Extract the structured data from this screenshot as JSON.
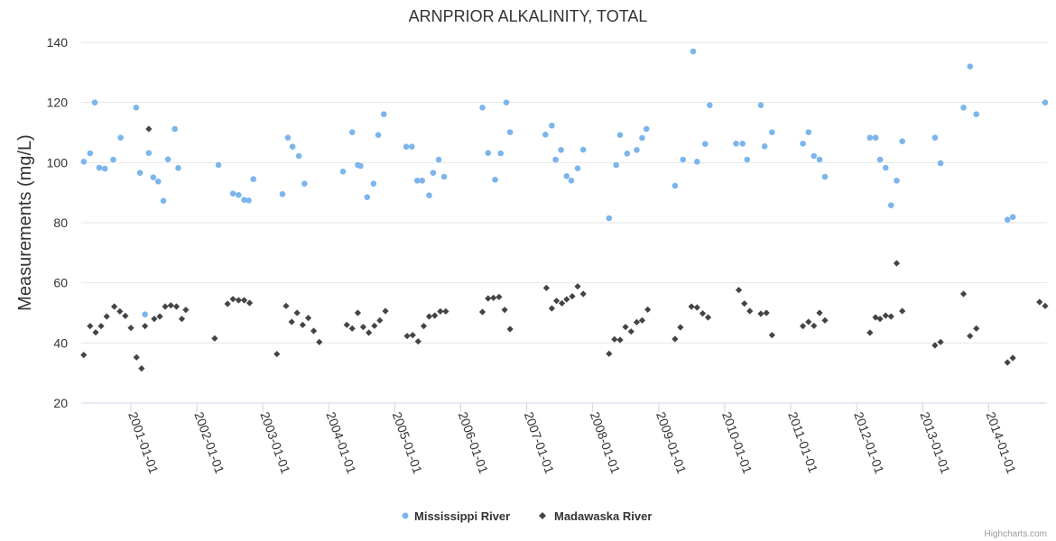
{
  "chart_data": {
    "type": "scatter",
    "title": "ARNPRIOR ALKALINITY, TOTAL",
    "ylabel": "Measurements (mg/L)",
    "xlabel": "",
    "ylim": [
      20,
      140
    ],
    "yticks": [
      20,
      40,
      60,
      80,
      100,
      120,
      140
    ],
    "xlim": [
      "2000-04-01",
      "2014-11-20"
    ],
    "xticks": [
      "2001-01-01",
      "2002-01-01",
      "2003-01-01",
      "2004-01-01",
      "2005-01-01",
      "2006-01-01",
      "2007-01-01",
      "2008-01-01",
      "2009-01-01",
      "2010-01-01",
      "2011-01-01",
      "2012-01-01",
      "2013-01-01",
      "2014-01-01"
    ],
    "grid": "horizontal",
    "legend_position": "bottom-center",
    "series": [
      {
        "name": "Mississippi River",
        "color": "#7cb5ec",
        "marker": "circle",
        "points": [
          [
            "2000-04-15",
            100.3
          ],
          [
            "2000-05-20",
            103.1
          ],
          [
            "2000-06-15",
            120
          ],
          [
            "2000-07-10",
            98.3
          ],
          [
            "2000-08-10",
            98
          ],
          [
            "2000-09-25",
            101
          ],
          [
            "2000-11-05",
            108.3
          ],
          [
            "2001-01-30",
            118.3
          ],
          [
            "2001-02-20",
            96.6
          ],
          [
            "2001-03-20",
            49.5
          ],
          [
            "2001-04-10",
            103.2
          ],
          [
            "2001-05-05",
            95.1
          ],
          [
            "2001-06-01",
            93.7
          ],
          [
            "2001-06-30",
            87.3
          ],
          [
            "2001-07-25",
            101.1
          ],
          [
            "2001-09-01",
            111.2
          ],
          [
            "2001-09-20",
            98.2
          ],
          [
            "2002-05-01",
            99.2
          ],
          [
            "2002-07-20",
            89.7
          ],
          [
            "2002-08-20",
            89.2
          ],
          [
            "2002-09-20",
            87.6
          ],
          [
            "2002-10-15",
            87.4
          ],
          [
            "2002-11-10",
            94.5
          ],
          [
            "2003-04-20",
            89.5
          ],
          [
            "2003-05-20",
            108.3
          ],
          [
            "2003-06-15",
            105.3
          ],
          [
            "2003-07-20",
            102.2
          ],
          [
            "2003-08-20",
            93
          ],
          [
            "2004-03-20",
            97
          ],
          [
            "2004-05-10",
            110.1
          ],
          [
            "2004-06-10",
            99.2
          ],
          [
            "2004-06-25",
            98.9
          ],
          [
            "2004-08-01",
            88.5
          ],
          [
            "2004-09-05",
            93
          ],
          [
            "2004-10-01",
            109.2
          ],
          [
            "2004-11-01",
            116.1
          ],
          [
            "2005-03-05",
            105.3
          ],
          [
            "2005-04-05",
            105.3
          ],
          [
            "2005-05-05",
            94
          ],
          [
            "2005-06-01",
            94
          ],
          [
            "2005-07-10",
            89.1
          ],
          [
            "2005-08-01",
            96.6
          ],
          [
            "2005-09-01",
            101
          ],
          [
            "2005-10-01",
            95.3
          ],
          [
            "2006-05-01",
            118.3
          ],
          [
            "2006-06-01",
            103.2
          ],
          [
            "2006-07-10",
            94.3
          ],
          [
            "2006-08-10",
            103.1
          ],
          [
            "2006-09-10",
            120
          ],
          [
            "2006-10-01",
            110.1
          ],
          [
            "2007-04-15",
            109.3
          ],
          [
            "2007-05-20",
            112.3
          ],
          [
            "2007-06-10",
            101
          ],
          [
            "2007-07-10",
            104.2
          ],
          [
            "2007-08-10",
            95.5
          ],
          [
            "2007-09-05",
            94
          ],
          [
            "2007-10-10",
            98.1
          ],
          [
            "2007-11-10",
            104.3
          ],
          [
            "2008-04-01",
            81.5
          ],
          [
            "2008-05-10",
            99.2
          ],
          [
            "2008-06-01",
            109.2
          ],
          [
            "2008-07-10",
            103
          ],
          [
            "2008-09-01",
            104.2
          ],
          [
            "2008-10-01",
            108.2
          ],
          [
            "2008-10-25",
            111.2
          ],
          [
            "2009-04-01",
            92.3
          ],
          [
            "2009-05-15",
            101
          ],
          [
            "2009-07-10",
            137
          ],
          [
            "2009-08-01",
            100.3
          ],
          [
            "2009-09-15",
            106.2
          ],
          [
            "2009-10-10",
            119.1
          ],
          [
            "2010-03-05",
            106.3
          ],
          [
            "2010-04-10",
            106.3
          ],
          [
            "2010-05-05",
            101
          ],
          [
            "2010-07-20",
            119.1
          ],
          [
            "2010-08-10",
            105.4
          ],
          [
            "2010-09-20",
            110.1
          ],
          [
            "2011-03-10",
            106.3
          ],
          [
            "2011-04-10",
            110.1
          ],
          [
            "2011-05-10",
            102.2
          ],
          [
            "2011-06-10",
            101
          ],
          [
            "2011-07-10",
            95.3
          ],
          [
            "2012-03-15",
            108.3
          ],
          [
            "2012-04-15",
            108.3
          ],
          [
            "2012-05-10",
            101
          ],
          [
            "2012-06-10",
            98.3
          ],
          [
            "2012-07-10",
            85.8
          ],
          [
            "2012-08-10",
            94
          ],
          [
            "2012-09-10",
            107.1
          ],
          [
            "2013-03-10",
            108.3
          ],
          [
            "2013-04-10",
            99.8
          ],
          [
            "2013-08-15",
            118.3
          ],
          [
            "2013-09-20",
            132
          ],
          [
            "2013-10-25",
            116.1
          ],
          [
            "2014-04-15",
            81
          ],
          [
            "2014-05-15",
            81.9
          ],
          [
            "2014-11-10",
            120
          ]
        ]
      },
      {
        "name": "Madawaska River",
        "color": "#434348",
        "marker": "diamond",
        "points": [
          [
            "2000-04-15",
            36
          ],
          [
            "2000-05-20",
            45.6
          ],
          [
            "2000-06-20",
            43.5
          ],
          [
            "2000-07-20",
            45.6
          ],
          [
            "2000-08-20",
            48.8
          ],
          [
            "2000-10-01",
            52.1
          ],
          [
            "2000-11-01",
            50.5
          ],
          [
            "2000-12-01",
            49
          ],
          [
            "2001-01-01",
            45
          ],
          [
            "2001-02-01",
            35.2
          ],
          [
            "2001-03-01",
            31.5
          ],
          [
            "2001-03-20",
            45.6
          ],
          [
            "2001-04-10",
            111.2
          ],
          [
            "2001-05-10",
            48
          ],
          [
            "2001-06-10",
            48.8
          ],
          [
            "2001-07-10",
            52.1
          ],
          [
            "2001-08-10",
            52.5
          ],
          [
            "2001-09-10",
            52.1
          ],
          [
            "2001-10-10",
            48
          ],
          [
            "2001-11-01",
            51
          ],
          [
            "2002-04-10",
            41.5
          ],
          [
            "2002-06-20",
            53
          ],
          [
            "2002-07-20",
            54.6
          ],
          [
            "2002-08-20",
            54.2
          ],
          [
            "2002-09-20",
            54.2
          ],
          [
            "2002-10-20",
            53.3
          ],
          [
            "2003-03-20",
            36.3
          ],
          [
            "2003-05-10",
            52.3
          ],
          [
            "2003-06-10",
            47
          ],
          [
            "2003-07-10",
            50
          ],
          [
            "2003-08-10",
            46
          ],
          [
            "2003-09-10",
            48.3
          ],
          [
            "2003-10-10",
            44
          ],
          [
            "2003-11-10",
            40.3
          ],
          [
            "2004-04-10",
            46
          ],
          [
            "2004-05-10",
            44.8
          ],
          [
            "2004-06-10",
            50
          ],
          [
            "2004-07-10",
            45.3
          ],
          [
            "2004-08-10",
            43.4
          ],
          [
            "2004-09-10",
            45.7
          ],
          [
            "2004-10-10",
            47.5
          ],
          [
            "2004-11-10",
            50.6
          ],
          [
            "2005-03-10",
            42.3
          ],
          [
            "2005-04-10",
            42.6
          ],
          [
            "2005-05-10",
            40.5
          ],
          [
            "2005-06-10",
            45.6
          ],
          [
            "2005-07-10",
            48.8
          ],
          [
            "2005-08-10",
            49.1
          ],
          [
            "2005-09-10",
            50.5
          ],
          [
            "2005-10-10",
            50.5
          ],
          [
            "2006-05-01",
            50.3
          ],
          [
            "2006-06-01",
            54.8
          ],
          [
            "2006-07-01",
            55
          ],
          [
            "2006-08-01",
            55.3
          ],
          [
            "2006-09-01",
            51
          ],
          [
            "2006-10-01",
            44.6
          ],
          [
            "2007-04-20",
            58.3
          ],
          [
            "2007-05-20",
            51.5
          ],
          [
            "2007-06-15",
            54
          ],
          [
            "2007-07-15",
            53.2
          ],
          [
            "2007-08-10",
            54.5
          ],
          [
            "2007-09-10",
            55.5
          ],
          [
            "2007-10-10",
            58.8
          ],
          [
            "2007-11-10",
            56.3
          ],
          [
            "2008-04-01",
            36.4
          ],
          [
            "2008-05-01",
            41.2
          ],
          [
            "2008-06-01",
            41
          ],
          [
            "2008-07-01",
            45.3
          ],
          [
            "2008-08-01",
            43.8
          ],
          [
            "2008-09-01",
            46.9
          ],
          [
            "2008-10-01",
            47.5
          ],
          [
            "2008-11-01",
            51.1
          ],
          [
            "2009-04-01",
            41.3
          ],
          [
            "2009-05-01",
            45.2
          ],
          [
            "2009-07-01",
            52.1
          ],
          [
            "2009-08-01",
            51.8
          ],
          [
            "2009-09-01",
            49.8
          ],
          [
            "2009-10-01",
            48.5
          ],
          [
            "2010-03-20",
            57.6
          ],
          [
            "2010-04-20",
            53.1
          ],
          [
            "2010-05-20",
            50.6
          ],
          [
            "2010-07-20",
            49.7
          ],
          [
            "2010-08-20",
            50
          ],
          [
            "2010-09-20",
            42.6
          ],
          [
            "2011-03-10",
            45.6
          ],
          [
            "2011-04-10",
            47
          ],
          [
            "2011-05-10",
            45.7
          ],
          [
            "2011-06-10",
            50
          ],
          [
            "2011-07-10",
            47.5
          ],
          [
            "2012-03-15",
            43.4
          ],
          [
            "2012-04-15",
            48.5
          ],
          [
            "2012-05-10",
            48
          ],
          [
            "2012-06-10",
            49.1
          ],
          [
            "2012-07-10",
            48.8
          ],
          [
            "2012-08-10",
            66.5
          ],
          [
            "2012-09-10",
            50.6
          ],
          [
            "2013-03-10",
            39.2
          ],
          [
            "2013-04-10",
            40.3
          ],
          [
            "2013-08-15",
            56.3
          ],
          [
            "2013-09-20",
            42.3
          ],
          [
            "2013-10-25",
            44.8
          ],
          [
            "2014-04-15",
            33.5
          ],
          [
            "2014-05-15",
            35
          ],
          [
            "2014-10-10",
            53.6
          ],
          [
            "2014-11-10",
            52.3
          ]
        ]
      }
    ]
  },
  "credits": "Highcharts.com"
}
